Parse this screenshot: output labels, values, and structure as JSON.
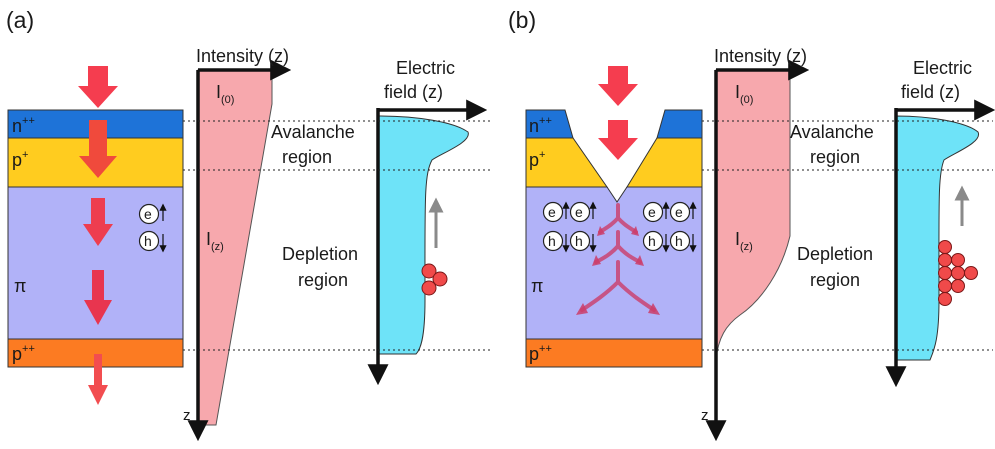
{
  "panels": [
    {
      "label": "(a)",
      "layers": [
        {
          "label": "n",
          "sup": "++",
          "color": "#1e73d8"
        },
        {
          "label": "p",
          "sup": "+",
          "color": "#ffcc1f"
        },
        {
          "label": "π",
          "sup": "",
          "color": "#b1b2f8"
        },
        {
          "label": "p",
          "sup": "++",
          "color": "#fc7b22"
        }
      ],
      "intensity_axis": "Intensity (z)",
      "z_label": "z",
      "i0_main": "I",
      "i0_sub": "(0)",
      "iz_main": "I",
      "iz_sub": "(z)",
      "field_axis_line1": "Electric",
      "field_axis_line2": "field (z)",
      "avalanche_line1": "Avalanche",
      "avalanche_line2": "region",
      "depletion_line1": "Depletion",
      "depletion_line2": "region",
      "electron": "e",
      "hole": "h"
    },
    {
      "label": "(b)",
      "layers": [
        {
          "label": "n",
          "sup": "++",
          "color": "#1e73d8"
        },
        {
          "label": "p",
          "sup": "+",
          "color": "#ffcc1f"
        },
        {
          "label": "π",
          "sup": "",
          "color": "#b1b2f8"
        },
        {
          "label": "p",
          "sup": "++",
          "color": "#fc7b22"
        }
      ],
      "intensity_axis": "Intensity (z)",
      "z_label": "z",
      "i0_main": "I",
      "i0_sub": "(0)",
      "iz_main": "I",
      "iz_sub": "(z)",
      "field_axis_line1": "Electric",
      "field_axis_line2": "field (z)",
      "avalanche_line1": "Avalanche",
      "avalanche_line2": "region",
      "depletion_line1": "Depletion",
      "depletion_line2": "region",
      "electron": "e",
      "hole": "h"
    }
  ],
  "colors": {
    "light_arrow": "#f53d4f",
    "intensity_fill": "#f7a8ad",
    "field_fill": "#6ee3f8",
    "particle": "#f04a4a",
    "carrier_arrow": "#8a8a8a",
    "electron_path": "#cc3d6a"
  }
}
